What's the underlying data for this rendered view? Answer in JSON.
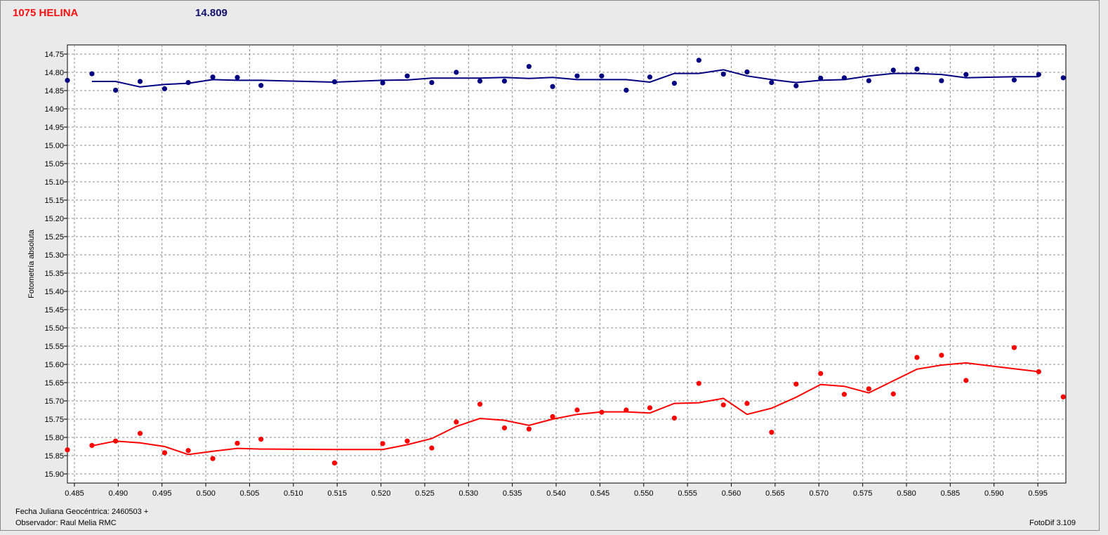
{
  "header": {
    "title": "1075 HELINA",
    "magnitude": "14.809"
  },
  "footer": {
    "date_label": "Fecha Juliana Geocéntrica: 2460503 +",
    "observer": "Observador: Raul Melia RMC",
    "software": "FotoDif 3.109"
  },
  "colors": {
    "series_blue": "#000080",
    "series_red": "#ff0000",
    "title_red": "#ff1010",
    "mag_blue": "#101070"
  },
  "chart_data": {
    "type": "scatter",
    "ylabel": "Fotometría absoluta",
    "xlabel": "",
    "xlim": [
      0.4842,
      0.5982
    ],
    "ylim": [
      14.725,
      15.925
    ],
    "y_inverted": true,
    "grid": true,
    "x_ticks": [
      "0.485",
      "0.490",
      "0.495",
      "0.500",
      "0.505",
      "0.510",
      "0.515",
      "0.520",
      "0.525",
      "0.530",
      "0.535",
      "0.540",
      "0.545",
      "0.550",
      "0.555",
      "0.560",
      "0.565",
      "0.570",
      "0.575",
      "0.580",
      "0.585",
      "0.590",
      "0.595"
    ],
    "y_ticks": [
      "14.75",
      "14.80",
      "14.85",
      "14.90",
      "14.95",
      "15.00",
      "15.05",
      "15.10",
      "15.15",
      "15.20",
      "15.25",
      "15.30",
      "15.35",
      "15.40",
      "15.45",
      "15.50",
      "15.55",
      "15.60",
      "15.65",
      "15.70",
      "15.75",
      "15.80",
      "15.85",
      "15.90"
    ],
    "series": [
      {
        "color": "#000080",
        "points": [
          [
            0.4842,
            14.822
          ],
          [
            0.487,
            14.804
          ],
          [
            0.4897,
            14.849
          ],
          [
            0.4925,
            14.825
          ],
          [
            0.4953,
            14.845
          ],
          [
            0.498,
            14.828
          ],
          [
            0.5008,
            14.813
          ],
          [
            0.5036,
            14.814
          ],
          [
            0.5063,
            14.836
          ],
          [
            0.5147,
            14.826
          ],
          [
            0.5202,
            14.829
          ],
          [
            0.523,
            14.81
          ],
          [
            0.5258,
            14.828
          ],
          [
            0.5286,
            14.8
          ],
          [
            0.5313,
            14.824
          ],
          [
            0.5341,
            14.824
          ],
          [
            0.5369,
            14.784
          ],
          [
            0.5396,
            14.839
          ],
          [
            0.5424,
            14.81
          ],
          [
            0.5452,
            14.81
          ],
          [
            0.548,
            14.849
          ],
          [
            0.5507,
            14.813
          ],
          [
            0.5535,
            14.83
          ],
          [
            0.5563,
            14.767
          ],
          [
            0.5591,
            14.805
          ],
          [
            0.5618,
            14.799
          ],
          [
            0.5646,
            14.828
          ],
          [
            0.5674,
            14.837
          ],
          [
            0.5702,
            14.816
          ],
          [
            0.5729,
            14.815
          ],
          [
            0.5757,
            14.823
          ],
          [
            0.5785,
            14.794
          ],
          [
            0.5812,
            14.791
          ],
          [
            0.584,
            14.823
          ],
          [
            0.5868,
            14.806
          ],
          [
            0.5923,
            14.821
          ],
          [
            0.5951,
            14.806
          ],
          [
            0.5979,
            14.815
          ]
        ],
        "fit": [
          [
            0.487,
            14.825
          ],
          [
            0.4897,
            14.825
          ],
          [
            0.4925,
            14.84
          ],
          [
            0.4953,
            14.833
          ],
          [
            0.498,
            14.83
          ],
          [
            0.5008,
            14.82
          ],
          [
            0.5036,
            14.822
          ],
          [
            0.5063,
            14.822
          ],
          [
            0.5147,
            14.827
          ],
          [
            0.5202,
            14.822
          ],
          [
            0.523,
            14.821
          ],
          [
            0.5258,
            14.816
          ],
          [
            0.5286,
            14.816
          ],
          [
            0.5313,
            14.816
          ],
          [
            0.5341,
            14.814
          ],
          [
            0.5369,
            14.817
          ],
          [
            0.5396,
            14.814
          ],
          [
            0.5424,
            14.82
          ],
          [
            0.5452,
            14.82
          ],
          [
            0.548,
            14.82
          ],
          [
            0.5507,
            14.827
          ],
          [
            0.5535,
            14.803
          ],
          [
            0.5563,
            14.803
          ],
          [
            0.5591,
            14.793
          ],
          [
            0.5618,
            14.81
          ],
          [
            0.5646,
            14.82
          ],
          [
            0.5674,
            14.828
          ],
          [
            0.5702,
            14.822
          ],
          [
            0.5729,
            14.82
          ],
          [
            0.5757,
            14.81
          ],
          [
            0.5785,
            14.803
          ],
          [
            0.5812,
            14.803
          ],
          [
            0.584,
            14.806
          ],
          [
            0.5868,
            14.815
          ],
          [
            0.5923,
            14.812
          ],
          [
            0.5951,
            14.812
          ]
        ]
      },
      {
        "color": "#ff0000",
        "points": [
          [
            0.4842,
            15.834
          ],
          [
            0.487,
            15.822
          ],
          [
            0.4897,
            15.81
          ],
          [
            0.4925,
            15.789
          ],
          [
            0.4953,
            15.842
          ],
          [
            0.498,
            15.836
          ],
          [
            0.5008,
            15.858
          ],
          [
            0.5036,
            15.816
          ],
          [
            0.5063,
            15.805
          ],
          [
            0.5147,
            15.87
          ],
          [
            0.5202,
            15.817
          ],
          [
            0.523,
            15.81
          ],
          [
            0.5258,
            15.829
          ],
          [
            0.5286,
            15.758
          ],
          [
            0.5313,
            15.709
          ],
          [
            0.5341,
            15.774
          ],
          [
            0.5369,
            15.777
          ],
          [
            0.5396,
            15.743
          ],
          [
            0.5424,
            15.725
          ],
          [
            0.5452,
            15.731
          ],
          [
            0.548,
            15.725
          ],
          [
            0.5507,
            15.719
          ],
          [
            0.5535,
            15.747
          ],
          [
            0.5563,
            15.652
          ],
          [
            0.5591,
            15.711
          ],
          [
            0.5618,
            15.707
          ],
          [
            0.5646,
            15.786
          ],
          [
            0.5674,
            15.654
          ],
          [
            0.5702,
            15.625
          ],
          [
            0.5729,
            15.682
          ],
          [
            0.5757,
            15.667
          ],
          [
            0.5785,
            15.681
          ],
          [
            0.5812,
            15.581
          ],
          [
            0.584,
            15.575
          ],
          [
            0.5868,
            15.644
          ],
          [
            0.5923,
            15.554
          ],
          [
            0.5951,
            15.62
          ],
          [
            0.5979,
            15.689
          ]
        ],
        "fit": [
          [
            0.487,
            15.823
          ],
          [
            0.4897,
            15.81
          ],
          [
            0.4925,
            15.815
          ],
          [
            0.4953,
            15.825
          ],
          [
            0.498,
            15.847
          ],
          [
            0.5008,
            15.838
          ],
          [
            0.5036,
            15.83
          ],
          [
            0.5063,
            15.832
          ],
          [
            0.5147,
            15.833
          ],
          [
            0.5202,
            15.833
          ],
          [
            0.523,
            15.82
          ],
          [
            0.5258,
            15.803
          ],
          [
            0.5286,
            15.77
          ],
          [
            0.5313,
            15.748
          ],
          [
            0.5341,
            15.753
          ],
          [
            0.5369,
            15.767
          ],
          [
            0.5396,
            15.75
          ],
          [
            0.5424,
            15.737
          ],
          [
            0.5452,
            15.73
          ],
          [
            0.548,
            15.73
          ],
          [
            0.5507,
            15.733
          ],
          [
            0.5535,
            15.707
          ],
          [
            0.5563,
            15.705
          ],
          [
            0.5591,
            15.693
          ],
          [
            0.5618,
            15.737
          ],
          [
            0.5646,
            15.72
          ],
          [
            0.5674,
            15.69
          ],
          [
            0.5702,
            15.655
          ],
          [
            0.5729,
            15.66
          ],
          [
            0.5757,
            15.678
          ],
          [
            0.5785,
            15.645
          ],
          [
            0.5812,
            15.613
          ],
          [
            0.584,
            15.602
          ],
          [
            0.5868,
            15.596
          ],
          [
            0.5923,
            15.612
          ],
          [
            0.5951,
            15.62
          ]
        ]
      }
    ]
  }
}
